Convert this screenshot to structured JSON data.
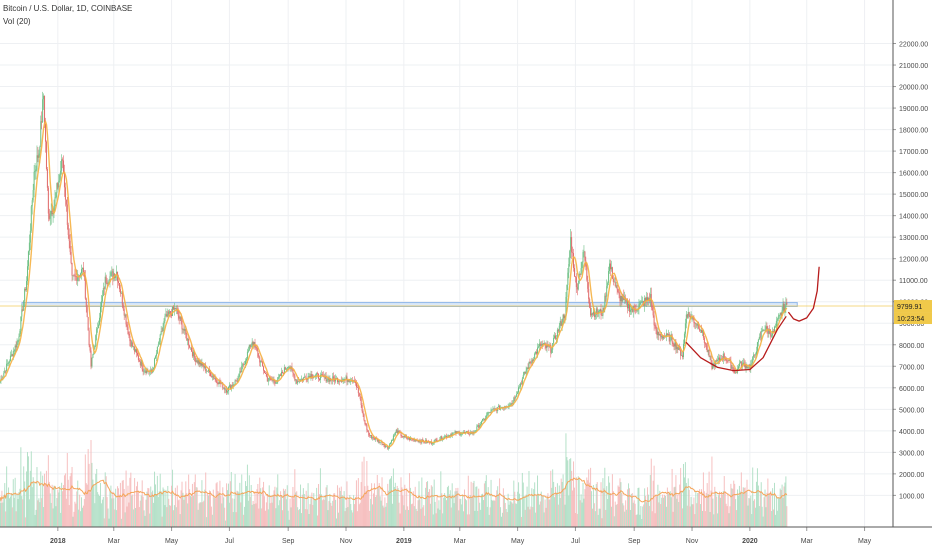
{
  "header": {
    "title": "Bitcoin / U.S. Dollar, 1D, COINBASE",
    "volume_label": "Vol (20)"
  },
  "price_badges": {
    "last_price": "9799.91",
    "countdown": "10:23:54"
  },
  "colors": {
    "up": "#6cbf84",
    "down": "#e06b6b",
    "ma_line": "#f5b041",
    "resistance_band": "#8fb6e8",
    "cup_curve": "#b71c1c",
    "last_price_line": "#f0c94a",
    "badge_bg": "#f0c94a",
    "volume_up": "#a8dcc0",
    "volume_down": "#f5b5b5",
    "volume_ma": "#f5a55a"
  },
  "chart_data": {
    "type": "candlestick",
    "y_axis": {
      "ticks": [
        1000,
        2000,
        3000,
        4000,
        5000,
        6000,
        7000,
        8000,
        9000,
        10000,
        11000,
        12000,
        13000,
        14000,
        15000,
        16000,
        17000,
        18000,
        19000,
        20000,
        21000,
        22000
      ],
      "tick_labels": [
        "1000.00",
        "2000.00",
        "3000.00",
        "4000.00",
        "5000.00",
        "6000.00",
        "7000.00",
        "8000.00",
        "9000.00",
        "10000.00",
        "11000.00",
        "12000.00",
        "13000.00",
        "14000.00",
        "15000.00",
        "16000.00",
        "17000.00",
        "18000.00",
        "19000.00",
        "20000.00",
        "21000.00",
        "22000.00"
      ],
      "range": [
        0,
        23000
      ],
      "position": "right"
    },
    "x_axis": {
      "labels": [
        "2018",
        "Mar",
        "May",
        "Jul",
        "Sep",
        "Nov",
        "2019",
        "Mar",
        "May",
        "Jul",
        "Sep",
        "Nov",
        "2020",
        "Mar",
        "May"
      ],
      "label_dates": [
        "2018-01-01",
        "2018-03-01",
        "2018-05-01",
        "2018-07-01",
        "2018-09-01",
        "2018-11-01",
        "2019-01-01",
        "2019-03-01",
        "2019-05-01",
        "2019-07-01",
        "2019-09-01",
        "2019-11-01",
        "2020-01-01",
        "2020-03-01",
        "2020-05-01"
      ],
      "range": [
        "2017-11-01",
        "2020-05-31"
      ]
    },
    "price_keypoints": [
      [
        "2017-11-01",
        6300
      ],
      [
        "2017-11-10",
        7200
      ],
      [
        "2017-11-20",
        8200
      ],
      [
        "2017-11-29",
        11000
      ],
      [
        "2017-12-07",
        16000
      ],
      [
        "2017-12-12",
        17000
      ],
      [
        "2017-12-17",
        19600
      ],
      [
        "2017-12-22",
        14000
      ],
      [
        "2017-12-28",
        14500
      ],
      [
        "2018-01-06",
        16600
      ],
      [
        "2018-01-16",
        11000
      ],
      [
        "2018-01-28",
        11500
      ],
      [
        "2018-02-05",
        7000
      ],
      [
        "2018-02-20",
        11000
      ],
      [
        "2018-03-04",
        11400
      ],
      [
        "2018-03-18",
        8200
      ],
      [
        "2018-04-01",
        6900
      ],
      [
        "2018-04-10",
        6700
      ],
      [
        "2018-04-24",
        9200
      ],
      [
        "2018-05-05",
        9700
      ],
      [
        "2018-05-25",
        7400
      ],
      [
        "2018-06-10",
        6700
      ],
      [
        "2018-06-28",
        5900
      ],
      [
        "2018-07-10",
        6400
      ],
      [
        "2018-07-25",
        8200
      ],
      [
        "2018-08-10",
        6400
      ],
      [
        "2018-08-20",
        6300
      ],
      [
        "2018-09-01",
        7100
      ],
      [
        "2018-09-10",
        6300
      ],
      [
        "2018-09-25",
        6600
      ],
      [
        "2018-10-15",
        6400
      ],
      [
        "2018-11-10",
        6400
      ],
      [
        "2018-11-15",
        5600
      ],
      [
        "2018-11-20",
        4500
      ],
      [
        "2018-11-25",
        3800
      ],
      [
        "2018-12-10",
        3400
      ],
      [
        "2018-12-15",
        3200
      ],
      [
        "2018-12-24",
        4000
      ],
      [
        "2019-01-01",
        3700
      ],
      [
        "2019-01-10",
        3600
      ],
      [
        "2019-01-30",
        3450
      ],
      [
        "2019-02-08",
        3650
      ],
      [
        "2019-02-24",
        3900
      ],
      [
        "2019-03-15",
        3900
      ],
      [
        "2019-04-02",
        4900
      ],
      [
        "2019-04-25",
        5300
      ],
      [
        "2019-05-12",
        7000
      ],
      [
        "2019-05-25",
        8000
      ],
      [
        "2019-06-05",
        7800
      ],
      [
        "2019-06-20",
        9500
      ],
      [
        "2019-06-26",
        12900
      ],
      [
        "2019-07-02",
        10600
      ],
      [
        "2019-07-10",
        12300
      ],
      [
        "2019-07-17",
        9500
      ],
      [
        "2019-07-30",
        9500
      ],
      [
        "2019-08-06",
        11700
      ],
      [
        "2019-08-15",
        10300
      ],
      [
        "2019-08-30",
        9600
      ],
      [
        "2019-09-18",
        10200
      ],
      [
        "2019-09-24",
        8500
      ],
      [
        "2019-10-10",
        8300
      ],
      [
        "2019-10-22",
        7500
      ],
      [
        "2019-10-26",
        9500
      ],
      [
        "2019-11-10",
        8800
      ],
      [
        "2019-11-22",
        7000
      ],
      [
        "2019-12-05",
        7500
      ],
      [
        "2019-12-18",
        6650
      ],
      [
        "2019-12-20",
        7100
      ],
      [
        "2020-01-02",
        7000
      ],
      [
        "2020-01-15",
        8800
      ],
      [
        "2020-01-25",
        8500
      ],
      [
        "2020-02-05",
        9700
      ],
      [
        "2020-02-09",
        9800
      ]
    ],
    "volume_axis": {
      "range": [
        0,
        6000
      ]
    },
    "resistance_band": {
      "low": 9780,
      "high": 9960
    },
    "last_price": 9799.91,
    "cup_curve": [
      [
        "2019-10-26",
        8100
      ],
      [
        "2019-11-10",
        7400
      ],
      [
        "2019-11-28",
        6950
      ],
      [
        "2019-12-15",
        6800
      ],
      [
        "2020-01-01",
        6850
      ],
      [
        "2020-01-15",
        7400
      ],
      [
        "2020-01-30",
        8700
      ],
      [
        "2020-02-08",
        9300
      ]
    ],
    "projection_curve": [
      [
        "2020-02-11",
        9500
      ],
      [
        "2020-02-16",
        9200
      ],
      [
        "2020-02-22",
        9100
      ],
      [
        "2020-03-01",
        9250
      ],
      [
        "2020-03-08",
        9700
      ],
      [
        "2020-03-12",
        10500
      ],
      [
        "2020-03-14",
        11600
      ]
    ],
    "grid": true,
    "legend": "none"
  }
}
